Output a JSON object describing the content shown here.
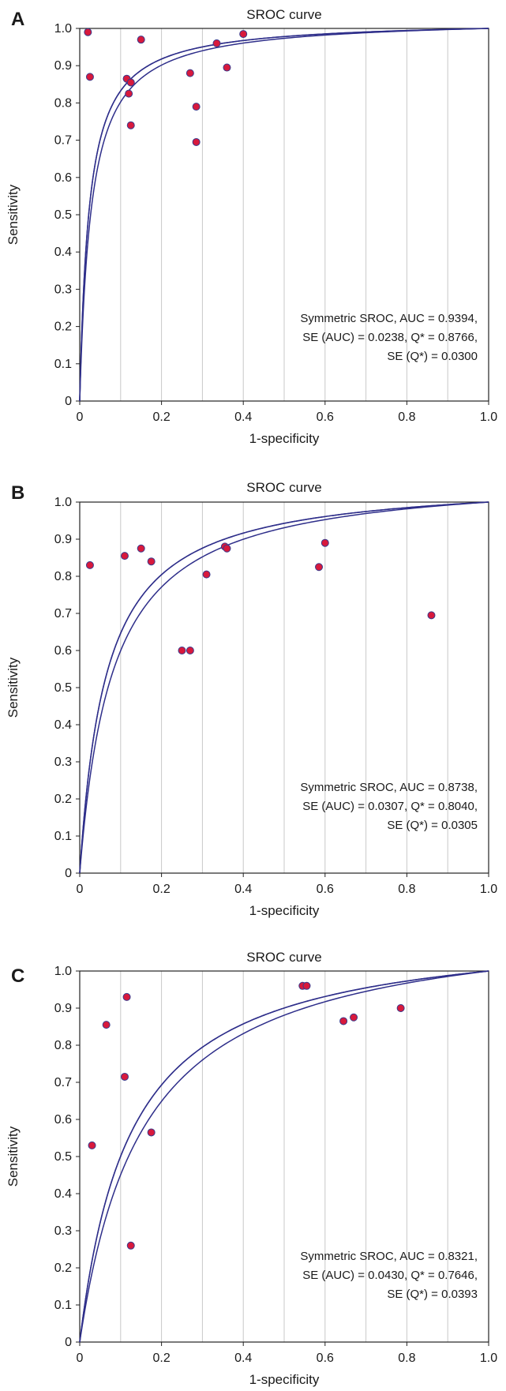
{
  "chart_data": [
    {
      "panel": "A",
      "type": "scatter",
      "title": "SROC curve",
      "xlabel": "1-specificity",
      "ylabel": "Sensitivity",
      "xlim": [
        0,
        1
      ],
      "ylim": [
        0,
        1
      ],
      "x_ticks": [
        "0",
        "0.2",
        "0.4",
        "0.6",
        "0.8",
        "1.0"
      ],
      "y_ticks": [
        "0",
        "0.1",
        "0.2",
        "0.3",
        "0.4",
        "0.5",
        "0.6",
        "0.7",
        "0.8",
        "0.9",
        "1.0"
      ],
      "grid": "vertical",
      "points": [
        {
          "x": 0.02,
          "y": 0.99
        },
        {
          "x": 0.025,
          "y": 0.87
        },
        {
          "x": 0.115,
          "y": 0.865
        },
        {
          "x": 0.125,
          "y": 0.855
        },
        {
          "x": 0.12,
          "y": 0.825
        },
        {
          "x": 0.125,
          "y": 0.74
        },
        {
          "x": 0.15,
          "y": 0.97
        },
        {
          "x": 0.27,
          "y": 0.88
        },
        {
          "x": 0.285,
          "y": 0.79
        },
        {
          "x": 0.285,
          "y": 0.695
        },
        {
          "x": 0.335,
          "y": 0.96
        },
        {
          "x": 0.36,
          "y": 0.895
        },
        {
          "x": 0.4,
          "y": 0.985
        }
      ],
      "annotation": [
        "Symmetric SROC, AUC = 0.9394,",
        "SE (AUC) = 0.0238, Q* = 0.8766,",
        "SE (Q*) = 0.0300"
      ]
    },
    {
      "panel": "B",
      "type": "scatter",
      "title": "SROC curve",
      "xlabel": "1-specificity",
      "ylabel": "Sensitivity",
      "xlim": [
        0,
        1
      ],
      "ylim": [
        0,
        1
      ],
      "x_ticks": [
        "0",
        "0.2",
        "0.4",
        "0.6",
        "0.8",
        "1.0"
      ],
      "y_ticks": [
        "0",
        "0.1",
        "0.2",
        "0.3",
        "0.4",
        "0.5",
        "0.6",
        "0.7",
        "0.8",
        "0.9",
        "1.0"
      ],
      "grid": "vertical",
      "points": [
        {
          "x": 0.025,
          "y": 0.83
        },
        {
          "x": 0.11,
          "y": 0.855
        },
        {
          "x": 0.15,
          "y": 0.875
        },
        {
          "x": 0.175,
          "y": 0.84
        },
        {
          "x": 0.25,
          "y": 0.6
        },
        {
          "x": 0.27,
          "y": 0.6
        },
        {
          "x": 0.31,
          "y": 0.805
        },
        {
          "x": 0.355,
          "y": 0.88
        },
        {
          "x": 0.36,
          "y": 0.875
        },
        {
          "x": 0.585,
          "y": 0.825
        },
        {
          "x": 0.6,
          "y": 0.89
        },
        {
          "x": 0.86,
          "y": 0.695
        }
      ],
      "annotation": [
        "Symmetric SROC, AUC = 0.8738,",
        "SE (AUC) = 0.0307, Q* = 0.8040,",
        "SE (Q*) = 0.0305"
      ]
    },
    {
      "panel": "C",
      "type": "scatter",
      "title": "SROC curve",
      "xlabel": "1-specificity",
      "ylabel": "Sensitivity",
      "xlim": [
        0,
        1
      ],
      "ylim": [
        0,
        1
      ],
      "x_ticks": [
        "0",
        "0.2",
        "0.4",
        "0.6",
        "0.8",
        "1.0"
      ],
      "y_ticks": [
        "0",
        "0.1",
        "0.2",
        "0.3",
        "0.4",
        "0.5",
        "0.6",
        "0.7",
        "0.8",
        "0.9",
        "1.0"
      ],
      "grid": "vertical",
      "points": [
        {
          "x": 0.03,
          "y": 0.53
        },
        {
          "x": 0.065,
          "y": 0.855
        },
        {
          "x": 0.11,
          "y": 0.715
        },
        {
          "x": 0.115,
          "y": 0.93
        },
        {
          "x": 0.125,
          "y": 0.26
        },
        {
          "x": 0.175,
          "y": 0.565
        },
        {
          "x": 0.545,
          "y": 0.96
        },
        {
          "x": 0.555,
          "y": 0.96
        },
        {
          "x": 0.645,
          "y": 0.865
        },
        {
          "x": 0.67,
          "y": 0.875
        },
        {
          "x": 0.785,
          "y": 0.9
        }
      ],
      "annotation": [
        "Symmetric SROC, AUC = 0.8321,",
        "SE (AUC) = 0.0430, Q* = 0.7646,",
        "SE (Q*) = 0.0393"
      ]
    }
  ]
}
